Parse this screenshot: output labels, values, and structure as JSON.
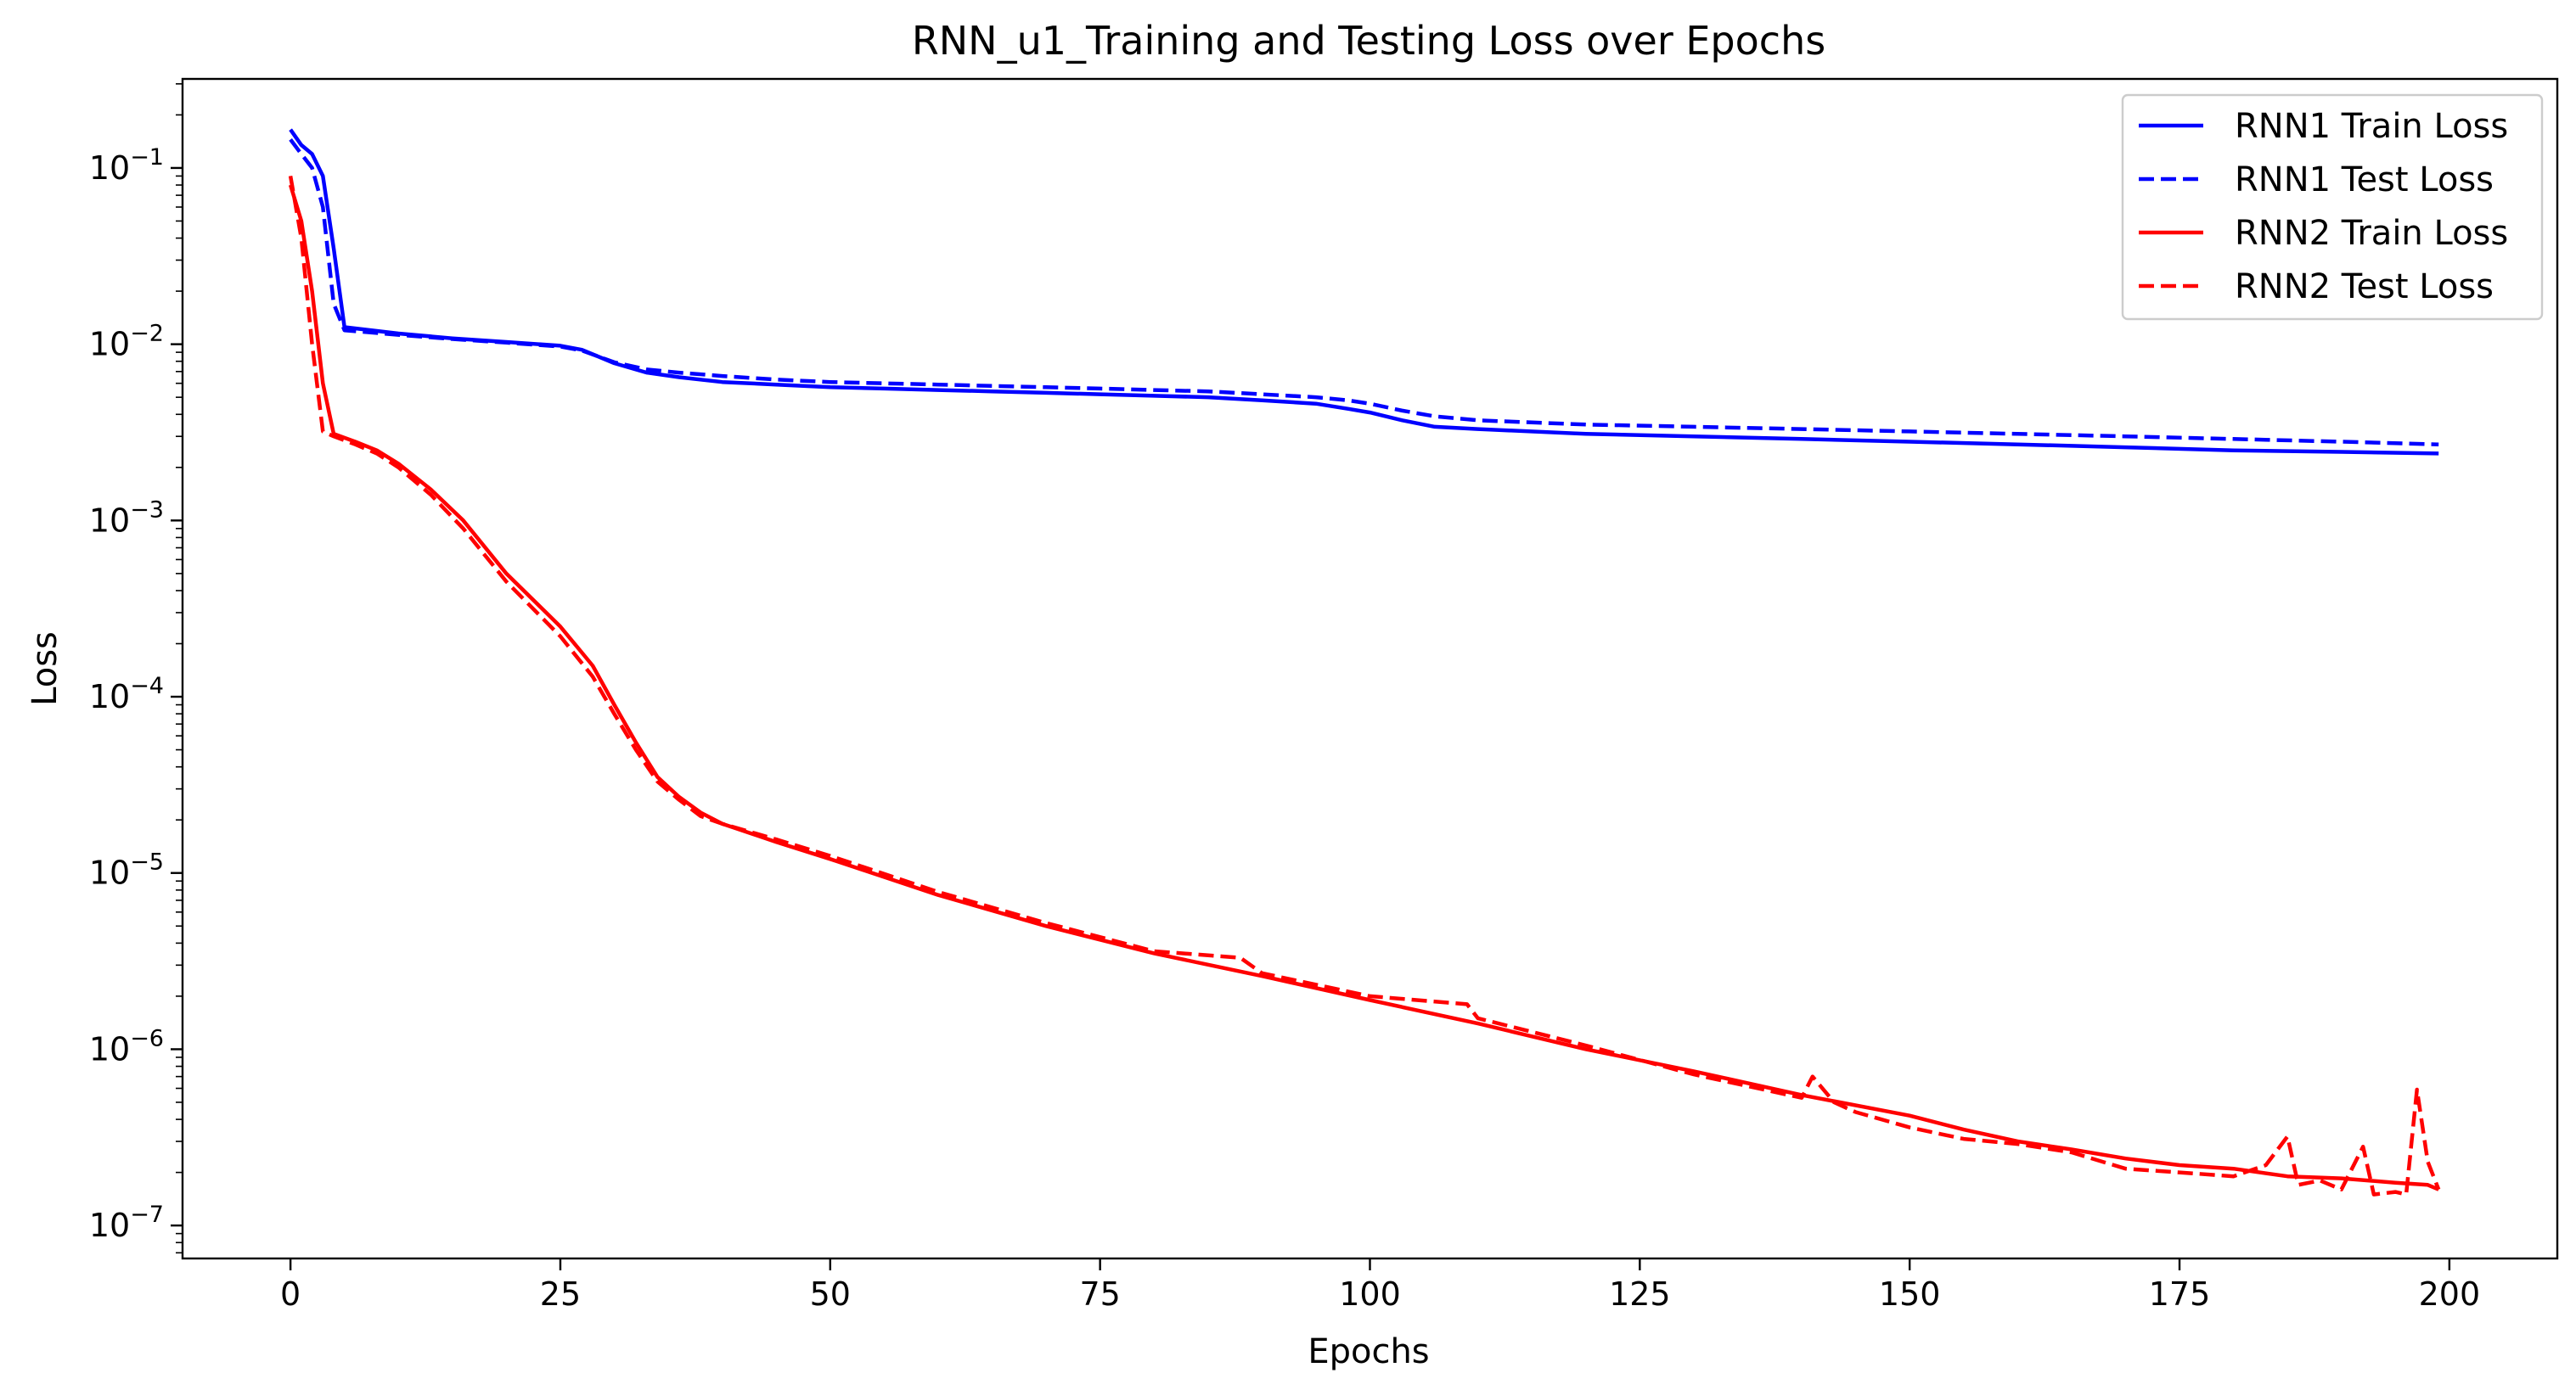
{
  "chart_data": {
    "type": "line",
    "title": "RNN_u1_Training and Testing Loss over Epochs",
    "xlabel": "Epochs",
    "ylabel": "Loss",
    "xlim": [
      -10,
      210
    ],
    "ylim": [
      6.5e-08,
      0.32
    ],
    "yscale": "log",
    "grid": false,
    "legend_position": "top-right",
    "xticks": [
      0,
      25,
      50,
      75,
      100,
      125,
      150,
      175,
      200
    ],
    "xtick_labels": [
      "0",
      "25",
      "50",
      "75",
      "100",
      "125",
      "150",
      "175",
      "200"
    ],
    "yticks": [
      1e-07,
      1e-06,
      1e-05,
      0.0001,
      0.001,
      0.01,
      0.1
    ],
    "ytick_exponents": [
      "−7",
      "−6",
      "−5",
      "−4",
      "−3",
      "−2",
      "−1"
    ],
    "series": [
      {
        "name": "RNN1 Train Loss",
        "color": "#0000ff",
        "dash": "solid",
        "x": [
          0,
          1,
          2,
          3,
          4,
          5,
          10,
          15,
          20,
          25,
          27,
          30,
          33,
          36,
          40,
          45,
          50,
          55,
          60,
          65,
          70,
          75,
          80,
          85,
          90,
          95,
          98,
          100,
          103,
          106,
          110,
          120,
          130,
          140,
          150,
          160,
          170,
          180,
          190,
          199
        ],
        "y": [
          0.165,
          0.135,
          0.12,
          0.09,
          0.035,
          0.0125,
          0.0115,
          0.0108,
          0.0103,
          0.0098,
          0.0093,
          0.0078,
          0.0069,
          0.0065,
          0.0061,
          0.0059,
          0.0057,
          0.0056,
          0.0055,
          0.0054,
          0.0053,
          0.0052,
          0.0051,
          0.005,
          0.0048,
          0.0046,
          0.0043,
          0.0041,
          0.0037,
          0.0034,
          0.0033,
          0.0031,
          0.003,
          0.0029,
          0.0028,
          0.0027,
          0.0026,
          0.0025,
          0.00245,
          0.0024
        ]
      },
      {
        "name": "RNN1 Test Loss",
        "color": "#0000ff",
        "dash": "dashed",
        "x": [
          0,
          1,
          2,
          3,
          4,
          5,
          10,
          15,
          20,
          25,
          27,
          30,
          33,
          36,
          40,
          45,
          50,
          55,
          60,
          65,
          70,
          75,
          80,
          85,
          90,
          95,
          98,
          100,
          103,
          106,
          110,
          120,
          130,
          140,
          150,
          160,
          170,
          180,
          190,
          199
        ],
        "y": [
          0.145,
          0.12,
          0.1,
          0.06,
          0.017,
          0.012,
          0.0113,
          0.0107,
          0.0102,
          0.0097,
          0.0092,
          0.0079,
          0.0072,
          0.0069,
          0.0066,
          0.0063,
          0.0061,
          0.006,
          0.0059,
          0.0058,
          0.0057,
          0.0056,
          0.0055,
          0.0054,
          0.0052,
          0.005,
          0.0048,
          0.0046,
          0.0042,
          0.0039,
          0.0037,
          0.0035,
          0.0034,
          0.0033,
          0.0032,
          0.0031,
          0.003,
          0.0029,
          0.0028,
          0.0027
        ]
      },
      {
        "name": "RNN2 Train Loss",
        "color": "#ff0000",
        "dash": "solid",
        "x": [
          0,
          1,
          2,
          3,
          4,
          6,
          8,
          10,
          13,
          16,
          20,
          25,
          28,
          30,
          32,
          34,
          36,
          38,
          40,
          45,
          50,
          60,
          70,
          80,
          90,
          100,
          110,
          120,
          130,
          140,
          150,
          155,
          160,
          165,
          170,
          175,
          180,
          185,
          190,
          195,
          198,
          199
        ],
        "y": [
          0.08,
          0.05,
          0.02,
          0.006,
          0.0031,
          0.0028,
          0.0025,
          0.0021,
          0.0015,
          0.001,
          0.0005,
          0.00025,
          0.00015,
          9e-05,
          5.5e-05,
          3.5e-05,
          2.7e-05,
          2.2e-05,
          1.9e-05,
          1.5e-05,
          1.2e-05,
          7.5e-06,
          5e-06,
          3.5e-06,
          2.6e-06,
          1.9e-06,
          1.4e-06,
          1e-06,
          7.5e-07,
          5.5e-07,
          4.2e-07,
          3.5e-07,
          3e-07,
          2.7e-07,
          2.4e-07,
          2.2e-07,
          2.1e-07,
          1.9e-07,
          1.85e-07,
          1.75e-07,
          1.7e-07,
          1.6e-07
        ]
      },
      {
        "name": "RNN2 Test Loss",
        "color": "#ff0000",
        "dash": "dashed",
        "x": [
          0,
          1,
          2,
          3,
          4,
          6,
          8,
          10,
          13,
          16,
          20,
          25,
          28,
          30,
          32,
          34,
          36,
          38,
          40,
          45,
          50,
          60,
          70,
          80,
          88,
          90,
          100,
          109,
          110,
          120,
          130,
          140,
          141,
          143,
          145,
          150,
          155,
          160,
          165,
          170,
          175,
          180,
          183,
          185,
          186,
          188,
          190,
          192,
          193,
          195,
          196,
          197,
          198,
          199
        ],
        "y": [
          0.09,
          0.04,
          0.01,
          0.0032,
          0.003,
          0.0027,
          0.0024,
          0.002,
          0.0014,
          0.0009,
          0.00045,
          0.00022,
          0.00013,
          8e-05,
          5e-05,
          3.3e-05,
          2.6e-05,
          2.1e-05,
          1.9e-05,
          1.55e-05,
          1.25e-05,
          7.8e-06,
          5.2e-06,
          3.6e-06,
          3.3e-06,
          2.7e-06,
          2e-06,
          1.8e-06,
          1.5e-06,
          1.05e-06,
          7.2e-07,
          5.3e-07,
          7e-07,
          5e-07,
          4.4e-07,
          3.6e-07,
          3.1e-07,
          2.9e-07,
          2.6e-07,
          2.1e-07,
          2e-07,
          1.9e-07,
          2.2e-07,
          3.2e-07,
          1.7e-07,
          1.8e-07,
          1.6e-07,
          2.8e-07,
          1.5e-07,
          1.55e-07,
          1.5e-07,
          5.9e-07,
          2.3e-07,
          1.6e-07
        ]
      }
    ]
  }
}
